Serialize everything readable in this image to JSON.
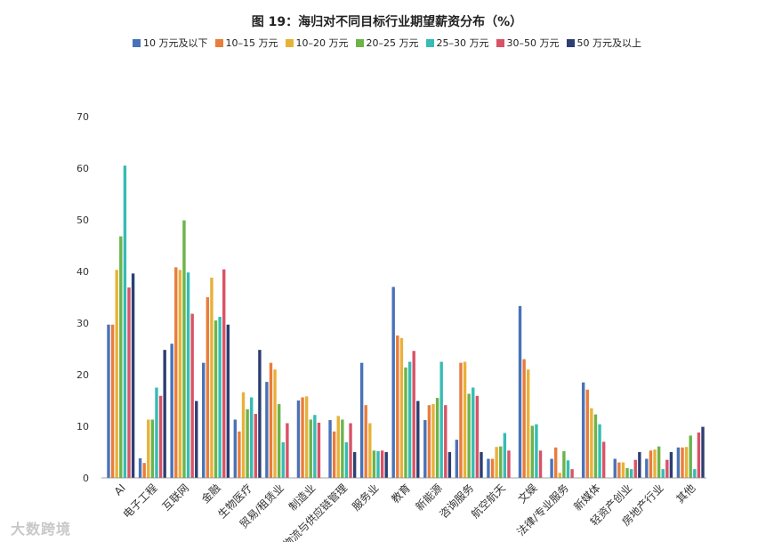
{
  "chart_data": {
    "type": "bar",
    "title": "图 19：海归对不同目标行业期望薪资分布（%）",
    "xlabel": "",
    "ylabel": "",
    "ylim": [
      0,
      70
    ],
    "yticks": [
      0,
      10,
      20,
      30,
      40,
      50,
      60,
      70
    ],
    "grid": false,
    "legend_position": "top",
    "categories": [
      "AI",
      "电子工程",
      "互联网",
      "金融",
      "生物医疗",
      "贸易/租赁业",
      "制造业",
      "物流与供应链管理",
      "服务业",
      "教育",
      "新能源",
      "咨询服务",
      "航空航天",
      "文娱",
      "法律/专业服务",
      "新媒体",
      "轻资产创业",
      "房地产行业",
      "其他"
    ],
    "series": [
      {
        "name": "10 万元及以下",
        "color": "#4a72b8",
        "values": [
          29.7,
          3.8,
          26.0,
          22.3,
          11.3,
          18.6,
          15.0,
          11.2,
          22.3,
          37.0,
          11.2,
          7.4,
          3.7,
          33.3,
          3.7,
          18.5,
          3.7,
          3.7,
          5.9
        ]
      },
      {
        "name": "10–15 万元",
        "color": "#e97d3b",
        "values": [
          29.7,
          2.9,
          40.8,
          35.0,
          9.0,
          22.3,
          15.6,
          9.0,
          14.1,
          27.6,
          14.1,
          22.3,
          3.7,
          23.0,
          5.9,
          17.1,
          3.0,
          5.3,
          5.9
        ]
      },
      {
        "name": "10–20 万元",
        "color": "#e8b13a",
        "values": [
          40.3,
          11.3,
          40.3,
          38.8,
          16.6,
          21.0,
          15.8,
          12.0,
          10.6,
          27.1,
          14.3,
          22.5,
          6.0,
          21.0,
          1.0,
          13.5,
          3.0,
          5.5,
          6.0
        ]
      },
      {
        "name": "20–25 万元",
        "color": "#6db34a",
        "values": [
          46.8,
          11.3,
          49.9,
          30.5,
          13.3,
          14.3,
          11.3,
          11.3,
          5.3,
          21.4,
          15.5,
          16.3,
          6.1,
          10.1,
          5.2,
          12.3,
          1.9,
          6.1,
          8.2
        ]
      },
      {
        "name": "25–30 万元",
        "color": "#36bcb4",
        "values": [
          60.5,
          17.5,
          39.8,
          31.2,
          15.6,
          6.9,
          12.2,
          6.9,
          5.2,
          22.5,
          22.5,
          17.5,
          8.7,
          10.4,
          3.4,
          10.4,
          1.7,
          1.7,
          1.7
        ]
      },
      {
        "name": "30–50 万元",
        "color": "#d85366",
        "values": [
          36.9,
          15.9,
          31.8,
          40.4,
          12.4,
          10.6,
          10.7,
          10.6,
          5.3,
          24.6,
          14.1,
          15.9,
          5.3,
          5.3,
          1.7,
          7.0,
          3.5,
          3.5,
          8.8
        ]
      },
      {
        "name": "50 万元及以上",
        "color": "#2d3e73",
        "values": [
          39.6,
          24.8,
          14.9,
          29.7,
          24.8,
          0,
          0,
          5.0,
          5.0,
          14.9,
          5.0,
          5.0,
          0,
          0,
          0,
          0,
          5.0,
          5.0,
          9.9
        ]
      }
    ]
  },
  "watermark": {
    "text": "大数跨境"
  }
}
